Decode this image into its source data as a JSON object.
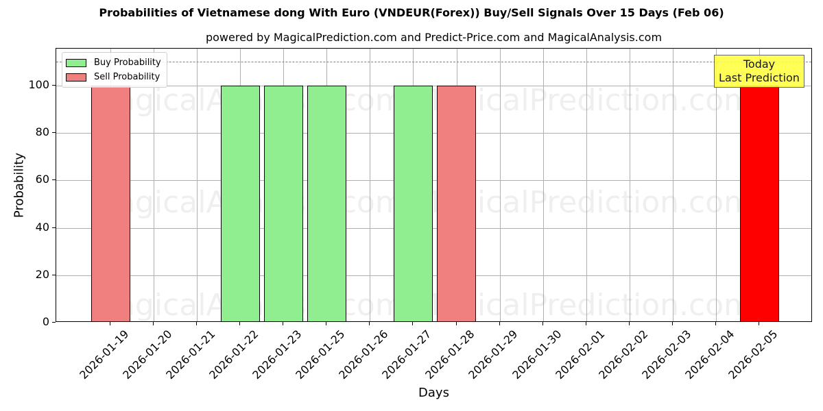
{
  "chart_data": {
    "type": "bar",
    "title": "Probabilities of Vietnamese dong With Euro (VNDEUR(Forex)) Buy/Sell Signals Over 15 Days (Feb 06)",
    "subtitle": "powered by MagicalPrediction.com and Predict-Price.com and MagicalAnalysis.com",
    "xlabel": "Days",
    "ylabel": "Probability",
    "ylim": [
      0,
      115
    ],
    "yticks": [
      "0",
      "20",
      "40",
      "60",
      "80",
      "100"
    ],
    "grid": true,
    "legend_position": "upper left",
    "categories": [
      "2026-01-19",
      "2026-01-20",
      "2026-01-21",
      "2026-01-22",
      "2026-01-23",
      "2026-01-25",
      "2026-01-26",
      "2026-01-27",
      "2026-01-28",
      "2026-01-29",
      "2026-01-30",
      "2026-02-01",
      "2026-02-02",
      "2026-02-03",
      "2026-02-04",
      "2026-02-05"
    ],
    "series": [
      {
        "name": "Buy Probability",
        "color": "#90ee90",
        "values": [
          0,
          0,
          0,
          100,
          100,
          100,
          0,
          100,
          0,
          0,
          0,
          0,
          0,
          0,
          0,
          0
        ]
      },
      {
        "name": "Sell Probability",
        "color": "#f08080",
        "values": [
          100,
          0,
          0,
          0,
          0,
          0,
          0,
          0,
          100,
          0,
          0,
          0,
          0,
          0,
          0,
          100
        ]
      }
    ],
    "highlight": {
      "category": "2026-02-05",
      "series": "Sell Probability",
      "value": 100,
      "color": "#ff0000"
    },
    "reference_line": {
      "y": 110,
      "style": "dashed",
      "color": "#808080"
    },
    "annotations": [
      {
        "text": "Today\nLast Prediction",
        "line1": "Today",
        "line2": "Last Prediction",
        "x": "2026-02-05",
        "background": "#ffff44"
      }
    ],
    "watermarks": [
      "MagicalAnalysis.com",
      "MagicalPrediction.com"
    ]
  }
}
